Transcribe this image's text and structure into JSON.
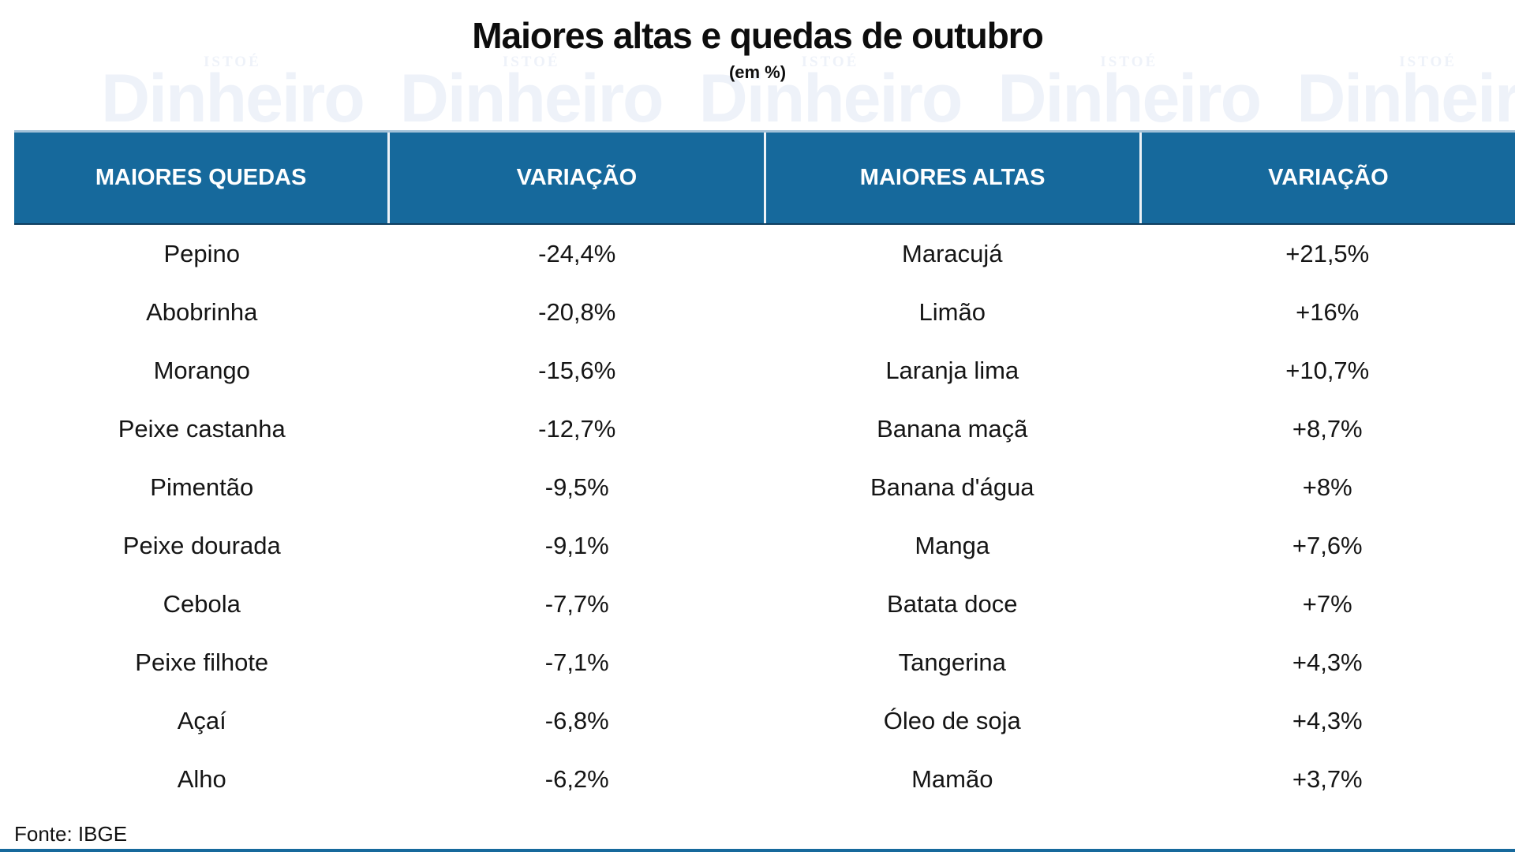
{
  "title": "Maiores altas e quedas de outubro",
  "subtitle": "(em %)",
  "source": "Fonte: IBGE",
  "watermark": {
    "top": "ISTOÉ",
    "bottom": "Dinheiro"
  },
  "colors": {
    "header_bg": "#16699c",
    "header_text": "#ffffff",
    "body_text": "#151515",
    "watermark": "#eef2f9",
    "accent_line": "#16699c"
  },
  "table": {
    "headers": [
      "MAIORES QUEDAS",
      "VARIAÇÃO",
      "MAIORES ALTAS",
      "VARIAÇÃO"
    ],
    "rows": [
      {
        "queda_item": "Pepino",
        "queda_var": "-24,4%",
        "alta_item": "Maracujá",
        "alta_var": "+21,5%"
      },
      {
        "queda_item": "Abobrinha",
        "queda_var": "-20,8%",
        "alta_item": "Limão",
        "alta_var": "+16%"
      },
      {
        "queda_item": "Morango",
        "queda_var": "-15,6%",
        "alta_item": "Laranja lima",
        "alta_var": "+10,7%"
      },
      {
        "queda_item": "Peixe castanha",
        "queda_var": "-12,7%",
        "alta_item": "Banana maçã",
        "alta_var": "+8,7%"
      },
      {
        "queda_item": "Pimentão",
        "queda_var": "-9,5%",
        "alta_item": "Banana d'água",
        "alta_var": "+8%"
      },
      {
        "queda_item": "Peixe dourada",
        "queda_var": "-9,1%",
        "alta_item": "Manga",
        "alta_var": "+7,6%"
      },
      {
        "queda_item": "Cebola",
        "queda_var": "-7,7%",
        "alta_item": "Batata doce",
        "alta_var": "+7%"
      },
      {
        "queda_item": "Peixe filhote",
        "queda_var": "-7,1%",
        "alta_item": "Tangerina",
        "alta_var": "+4,3%"
      },
      {
        "queda_item": "Açaí",
        "queda_var": "-6,8%",
        "alta_item": "Óleo de soja",
        "alta_var": "+4,3%"
      },
      {
        "queda_item": "Alho",
        "queda_var": "-6,2%",
        "alta_item": "Mamão",
        "alta_var": "+3,7%"
      }
    ]
  },
  "chart_data": {
    "type": "table",
    "title": "Maiores altas e quedas de outubro",
    "subtitle": "(em %)",
    "source": "Fonte: IBGE",
    "columns": [
      "MAIORES QUEDAS",
      "VARIAÇÃO",
      "MAIORES ALTAS",
      "VARIAÇÃO"
    ],
    "quedas": [
      {
        "item": "Pepino",
        "variacao_pct": -24.4
      },
      {
        "item": "Abobrinha",
        "variacao_pct": -20.8
      },
      {
        "item": "Morango",
        "variacao_pct": -15.6
      },
      {
        "item": "Peixe castanha",
        "variacao_pct": -12.7
      },
      {
        "item": "Pimentão",
        "variacao_pct": -9.5
      },
      {
        "item": "Peixe dourada",
        "variacao_pct": -9.1
      },
      {
        "item": "Cebola",
        "variacao_pct": -7.7
      },
      {
        "item": "Peixe filhote",
        "variacao_pct": -7.1
      },
      {
        "item": "Açaí",
        "variacao_pct": -6.8
      },
      {
        "item": "Alho",
        "variacao_pct": -6.2
      }
    ],
    "altas": [
      {
        "item": "Maracujá",
        "variacao_pct": 21.5
      },
      {
        "item": "Limão",
        "variacao_pct": 16
      },
      {
        "item": "Laranja lima",
        "variacao_pct": 10.7
      },
      {
        "item": "Banana maçã",
        "variacao_pct": 8.7
      },
      {
        "item": "Banana d'água",
        "variacao_pct": 8
      },
      {
        "item": "Manga",
        "variacao_pct": 7.6
      },
      {
        "item": "Batata doce",
        "variacao_pct": 7
      },
      {
        "item": "Tangerina",
        "variacao_pct": 4.3
      },
      {
        "item": "Óleo de soja",
        "variacao_pct": 4.3
      },
      {
        "item": "Mamão",
        "variacao_pct": 3.7
      }
    ]
  }
}
